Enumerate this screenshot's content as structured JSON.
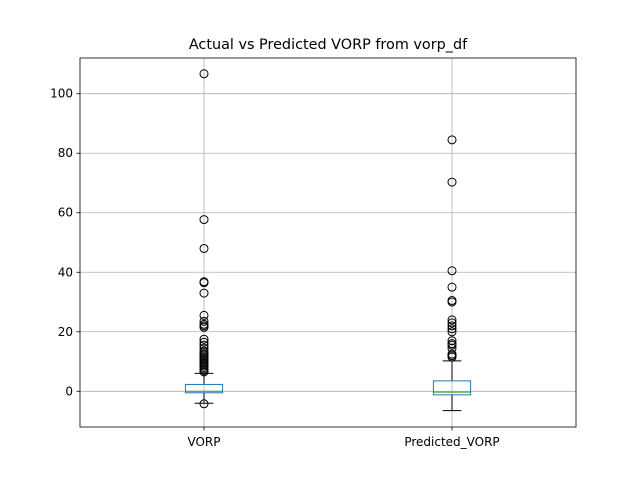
{
  "chart_data": {
    "type": "box",
    "title": "Actual vs Predicted VORP from vorp_df",
    "xlabel": "",
    "ylabel": "",
    "ylim": [
      -12,
      112
    ],
    "yticks": [
      0,
      20,
      40,
      60,
      80,
      100
    ],
    "ytick_labels": [
      "0",
      "20",
      "40",
      "60",
      "80",
      "100"
    ],
    "grid": true,
    "categories": [
      "VORP",
      "Predicted_VORP"
    ],
    "series": [
      {
        "q1": -0.5,
        "median": 0.0,
        "q3": 2.3,
        "whisker_low": -4.0,
        "whisker_high": 6.0,
        "outliers": [
          -4.2,
          6.5,
          7.0,
          7.5,
          8.0,
          8.5,
          9.0,
          9.5,
          10.0,
          10.5,
          11.0,
          11.5,
          12.0,
          12.5,
          13.0,
          13.5,
          14.5,
          15.5,
          16.5,
          17.5,
          21.5,
          22.0,
          22.5,
          23.5,
          25.5,
          33.0,
          36.5,
          36.8,
          48.0,
          57.7,
          106.7
        ]
      },
      {
        "q1": -1.2,
        "median": -0.3,
        "q3": 3.5,
        "whisker_low": -6.5,
        "whisker_high": 10.2,
        "outliers": [
          11.5,
          12.0,
          12.5,
          14.5,
          15.5,
          16.0,
          17.0,
          20.0,
          21.0,
          22.0,
          23.0,
          24.0,
          30.0,
          30.5,
          35.0,
          40.5,
          70.3,
          84.5
        ]
      }
    ],
    "colors": {
      "box": "#1f77b4",
      "median": "#2ca02c",
      "whisker": "#000000",
      "grid": "#b0b0b0",
      "axes": "#000000"
    }
  }
}
